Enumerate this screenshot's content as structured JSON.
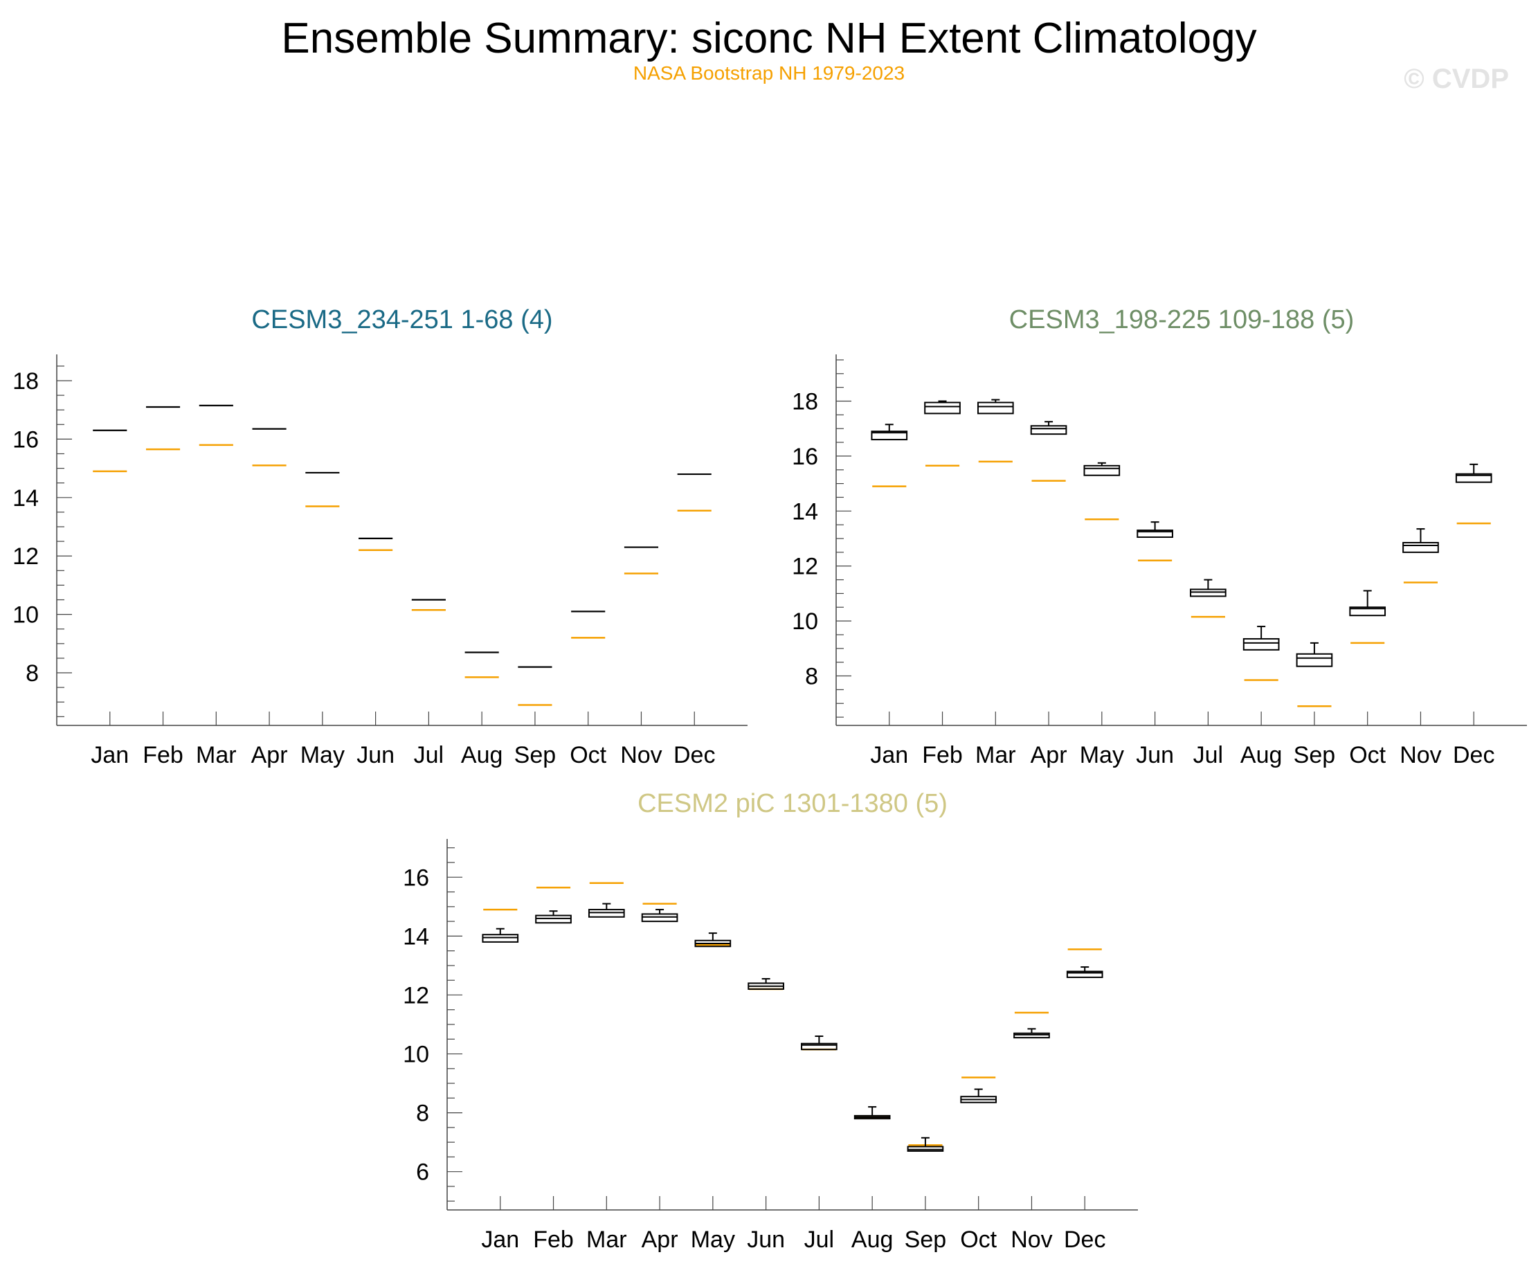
{
  "figure": {
    "title": "Ensemble Summary: siconc NH Extent Climatology",
    "subtitle": "NASA Bootstrap NH 1979-2023",
    "watermark": "© CVDP",
    "colors": {
      "observation": "#f5a000",
      "box": "#000000",
      "axis": "#444444"
    }
  },
  "chart_data": [
    {
      "type": "box",
      "title": "CESM3_234-251 1-68 (4)",
      "title_color": "#1a6a86",
      "categories": [
        "Jan",
        "Feb",
        "Mar",
        "Apr",
        "May",
        "Jun",
        "Jul",
        "Aug",
        "Sep",
        "Oct",
        "Nov",
        "Dec"
      ],
      "ylim": [
        6.2,
        18.9
      ],
      "yticks": [
        8,
        10,
        12,
        14,
        16,
        18
      ],
      "ensemble_boxes": [
        {
          "lo": 16.3,
          "q1": 16.3,
          "med": 16.3,
          "q3": 16.3,
          "hi": 16.3
        },
        {
          "lo": 17.1,
          "q1": 17.1,
          "med": 17.1,
          "q3": 17.1,
          "hi": 17.1
        },
        {
          "lo": 17.15,
          "q1": 17.15,
          "med": 17.15,
          "q3": 17.15,
          "hi": 17.15
        },
        {
          "lo": 16.35,
          "q1": 16.35,
          "med": 16.35,
          "q3": 16.35,
          "hi": 16.35
        },
        {
          "lo": 14.85,
          "q1": 14.85,
          "med": 14.85,
          "q3": 14.85,
          "hi": 14.85
        },
        {
          "lo": 12.6,
          "q1": 12.6,
          "med": 12.6,
          "q3": 12.6,
          "hi": 12.6
        },
        {
          "lo": 10.5,
          "q1": 10.5,
          "med": 10.5,
          "q3": 10.5,
          "hi": 10.5
        },
        {
          "lo": 8.7,
          "q1": 8.7,
          "med": 8.7,
          "q3": 8.7,
          "hi": 8.7
        },
        {
          "lo": 8.2,
          "q1": 8.2,
          "med": 8.2,
          "q3": 8.2,
          "hi": 8.2
        },
        {
          "lo": 10.1,
          "q1": 10.1,
          "med": 10.1,
          "q3": 10.1,
          "hi": 10.1
        },
        {
          "lo": 12.3,
          "q1": 12.3,
          "med": 12.3,
          "q3": 12.3,
          "hi": 12.3
        },
        {
          "lo": 14.8,
          "q1": 14.8,
          "med": 14.8,
          "q3": 14.8,
          "hi": 14.8
        }
      ],
      "observation": [
        14.9,
        15.65,
        15.8,
        15.1,
        13.7,
        12.2,
        10.15,
        7.85,
        6.9,
        9.2,
        11.4,
        13.55
      ]
    },
    {
      "type": "box",
      "title": "CESM3_198-225 109-188 (5)",
      "title_color": "#6e8e66",
      "categories": [
        "Jan",
        "Feb",
        "Mar",
        "Apr",
        "May",
        "Jun",
        "Jul",
        "Aug",
        "Sep",
        "Oct",
        "Nov",
        "Dec"
      ],
      "ylim": [
        6.2,
        19.7
      ],
      "yticks": [
        8,
        10,
        12,
        14,
        16,
        18
      ],
      "ensemble_boxes": [
        {
          "lo": 16.6,
          "q1": 16.6,
          "med": 16.85,
          "q3": 16.9,
          "hi": 17.15
        },
        {
          "lo": 17.55,
          "q1": 17.55,
          "med": 17.8,
          "q3": 17.95,
          "hi": 18.0
        },
        {
          "lo": 17.55,
          "q1": 17.55,
          "med": 17.8,
          "q3": 17.95,
          "hi": 18.05
        },
        {
          "lo": 16.8,
          "q1": 16.8,
          "med": 17.0,
          "q3": 17.1,
          "hi": 17.25
        },
        {
          "lo": 15.3,
          "q1": 15.3,
          "med": 15.55,
          "q3": 15.65,
          "hi": 15.75
        },
        {
          "lo": 13.05,
          "q1": 13.05,
          "med": 13.25,
          "q3": 13.3,
          "hi": 13.6
        },
        {
          "lo": 10.9,
          "q1": 10.9,
          "med": 11.05,
          "q3": 11.15,
          "hi": 11.5
        },
        {
          "lo": 8.95,
          "q1": 8.95,
          "med": 9.2,
          "q3": 9.35,
          "hi": 9.8
        },
        {
          "lo": 8.35,
          "q1": 8.35,
          "med": 8.65,
          "q3": 8.8,
          "hi": 9.2
        },
        {
          "lo": 10.2,
          "q1": 10.2,
          "med": 10.45,
          "q3": 10.5,
          "hi": 11.1
        },
        {
          "lo": 12.5,
          "q1": 12.5,
          "med": 12.75,
          "q3": 12.85,
          "hi": 13.35
        },
        {
          "lo": 15.05,
          "q1": 15.05,
          "med": 15.3,
          "q3": 15.35,
          "hi": 15.7
        }
      ],
      "observation": [
        14.9,
        15.65,
        15.8,
        15.1,
        13.7,
        12.2,
        10.15,
        7.85,
        6.9,
        9.2,
        11.4,
        13.55
      ]
    },
    {
      "type": "box",
      "title": "CESM2 piC 1301-1380 (5)",
      "title_color": "#cfc784",
      "categories": [
        "Jan",
        "Feb",
        "Mar",
        "Apr",
        "May",
        "Jun",
        "Jul",
        "Aug",
        "Sep",
        "Oct",
        "Nov",
        "Dec"
      ],
      "ylim": [
        4.7,
        17.3
      ],
      "yticks": [
        6,
        8,
        10,
        12,
        14,
        16
      ],
      "ensemble_boxes": [
        {
          "lo": 13.8,
          "q1": 13.8,
          "med": 13.95,
          "q3": 14.05,
          "hi": 14.25
        },
        {
          "lo": 14.45,
          "q1": 14.45,
          "med": 14.6,
          "q3": 14.7,
          "hi": 14.85
        },
        {
          "lo": 14.65,
          "q1": 14.65,
          "med": 14.8,
          "q3": 14.9,
          "hi": 15.1
        },
        {
          "lo": 14.5,
          "q1": 14.5,
          "med": 14.65,
          "q3": 14.75,
          "hi": 14.9
        },
        {
          "lo": 13.65,
          "q1": 13.65,
          "med": 13.75,
          "q3": 13.85,
          "hi": 14.1
        },
        {
          "lo": 12.2,
          "q1": 12.2,
          "med": 12.3,
          "q3": 12.4,
          "hi": 12.55
        },
        {
          "lo": 10.15,
          "q1": 10.15,
          "med": 10.3,
          "q3": 10.35,
          "hi": 10.6
        },
        {
          "lo": 7.8,
          "q1": 7.8,
          "med": 7.85,
          "q3": 7.9,
          "hi": 8.2
        },
        {
          "lo": 6.7,
          "q1": 6.7,
          "med": 6.75,
          "q3": 6.85,
          "hi": 7.15
        },
        {
          "lo": 8.35,
          "q1": 8.35,
          "med": 8.45,
          "q3": 8.55,
          "hi": 8.8
        },
        {
          "lo": 10.55,
          "q1": 10.55,
          "med": 10.65,
          "q3": 10.7,
          "hi": 10.85
        },
        {
          "lo": 12.6,
          "q1": 12.6,
          "med": 12.75,
          "q3": 12.8,
          "hi": 12.95
        }
      ],
      "observation": [
        14.9,
        15.65,
        15.8,
        15.1,
        13.7,
        12.2,
        10.15,
        7.85,
        6.9,
        9.2,
        11.4,
        13.55
      ]
    }
  ]
}
